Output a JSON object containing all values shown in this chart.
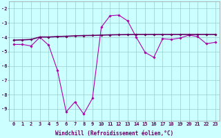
{
  "line1_x": [
    0,
    1,
    2,
    3,
    4,
    5,
    6,
    7,
    8,
    9,
    10,
    11,
    12,
    13,
    14,
    15,
    16,
    17,
    18,
    19,
    20,
    21,
    22,
    23
  ],
  "line1_y": [
    -4.5,
    -4.5,
    -4.6,
    -4.0,
    -4.55,
    -6.3,
    -9.2,
    -8.5,
    -9.35,
    -8.25,
    -3.3,
    -2.5,
    -2.45,
    -2.85,
    -4.0,
    -5.05,
    -5.4,
    -4.1,
    -4.15,
    -4.05,
    -3.85,
    -3.95,
    -4.45,
    -4.35
  ],
  "line2_x": [
    0,
    1,
    2,
    3,
    4,
    5,
    6,
    7,
    8,
    9,
    10,
    11,
    12,
    13,
    14,
    15,
    16,
    17,
    18,
    19,
    20,
    21,
    22,
    23
  ],
  "line2_y": [
    -4.2,
    -4.18,
    -4.15,
    -3.98,
    -3.98,
    -3.95,
    -3.93,
    -3.9,
    -3.88,
    -3.87,
    -3.85,
    -3.83,
    -3.82,
    -3.81,
    -3.8,
    -3.8,
    -3.8,
    -3.8,
    -3.8,
    -3.8,
    -3.8,
    -3.8,
    -3.8,
    -3.8
  ],
  "line1_color": "#aa00aa",
  "line2_color": "#660066",
  "marker": "D",
  "marker_size": 1.8,
  "linewidth1": 0.8,
  "linewidth2": 1.2,
  "background_color": "#ccffff",
  "grid_color": "#99cccc",
  "xlabel": "Windchill (Refroidissement éolien,°C)",
  "xlabel_fontsize": 5.5,
  "ylabel_ticks": [
    -9,
    -8,
    -7,
    -6,
    -5,
    -4,
    -3,
    -2
  ],
  "xlim": [
    -0.5,
    23.5
  ],
  "ylim": [
    -9.8,
    -1.5
  ],
  "tick_fontsize": 5.0,
  "figsize": [
    3.2,
    2.0
  ],
  "dpi": 100
}
